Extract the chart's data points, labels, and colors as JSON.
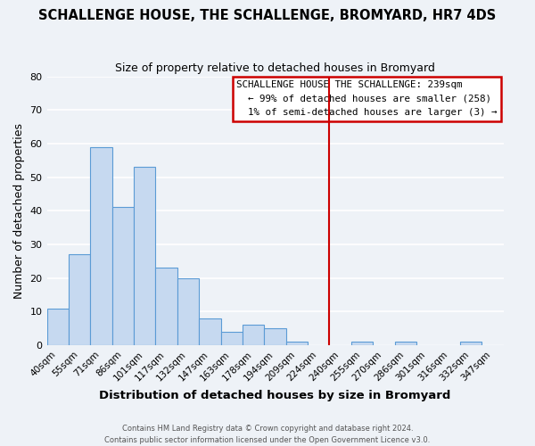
{
  "title": "SCHALLENGE HOUSE, THE SCHALLENGE, BROMYARD, HR7 4DS",
  "subtitle": "Size of property relative to detached houses in Bromyard",
  "xlabel": "Distribution of detached houses by size in Bromyard",
  "ylabel": "Number of detached properties",
  "bar_labels": [
    "40sqm",
    "55sqm",
    "71sqm",
    "86sqm",
    "101sqm",
    "117sqm",
    "132sqm",
    "147sqm",
    "163sqm",
    "178sqm",
    "194sqm",
    "209sqm",
    "224sqm",
    "240sqm",
    "255sqm",
    "270sqm",
    "286sqm",
    "301sqm",
    "316sqm",
    "332sqm",
    "347sqm"
  ],
  "bar_values": [
    11,
    27,
    59,
    41,
    53,
    23,
    20,
    8,
    4,
    6,
    5,
    1,
    0,
    0,
    1,
    0,
    1,
    0,
    0,
    1,
    0
  ],
  "bar_color": "#c6d9f0",
  "bar_edge_color": "#5b9bd5",
  "ylim": [
    0,
    80
  ],
  "yticks": [
    0,
    10,
    20,
    30,
    40,
    50,
    60,
    70,
    80
  ],
  "marker_line_x_label": "240sqm",
  "marker_line_color": "#cc0000",
  "legend_title": "SCHALLENGE HOUSE THE SCHALLENGE: 239sqm",
  "legend_line1": "← 99% of detached houses are smaller (258)",
  "legend_line2": "1% of semi-detached houses are larger (3) →",
  "footer_line1": "Contains HM Land Registry data © Crown copyright and database right 2024.",
  "footer_line2": "Contains public sector information licensed under the Open Government Licence v3.0.",
  "background_color": "#eef2f7",
  "plot_bg_color": "#eef2f7",
  "grid_color": "#ffffff"
}
